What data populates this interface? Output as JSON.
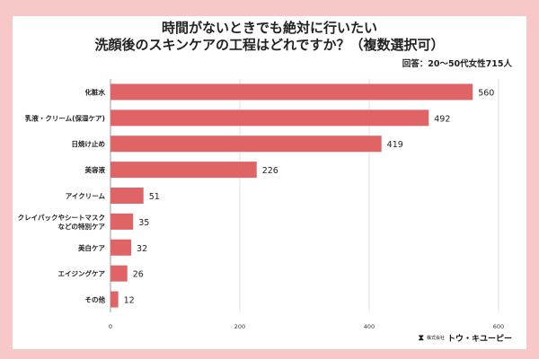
{
  "chart_data": {
    "type": "bar",
    "orientation": "horizontal",
    "title": "時間がないときでも絶対に行いたい\n洗顔後のスキンケアの工程はどれですか？（複数選択可）",
    "title_lines": [
      "時間がないときでも絶対に行いたい",
      "洗顔後のスキンケアの工程はどれですか？（複数選択可）"
    ],
    "subtitle": "回答：20〜50代女性715人",
    "categories": [
      "化粧水",
      "乳液・クリーム(保湿ケア)",
      "日焼け止め",
      "美容液",
      "アイクリーム",
      [
        "クレイパックやシートマスク",
        "などの特別ケア"
      ],
      "美白ケア",
      "エイジングケア",
      "その他"
    ],
    "values": [
      560,
      492,
      419,
      226,
      51,
      35,
      32,
      26,
      12
    ],
    "xlim": [
      0,
      600
    ],
    "xticks": [
      0,
      200,
      400,
      600
    ],
    "grid": true,
    "bar_color": "#e06466",
    "background_color": "#f8c8c9"
  },
  "logo": {
    "text": "株式会社トウ・キユーピー",
    "small": "株式会社",
    "brand": "トウ・キユーピー"
  }
}
